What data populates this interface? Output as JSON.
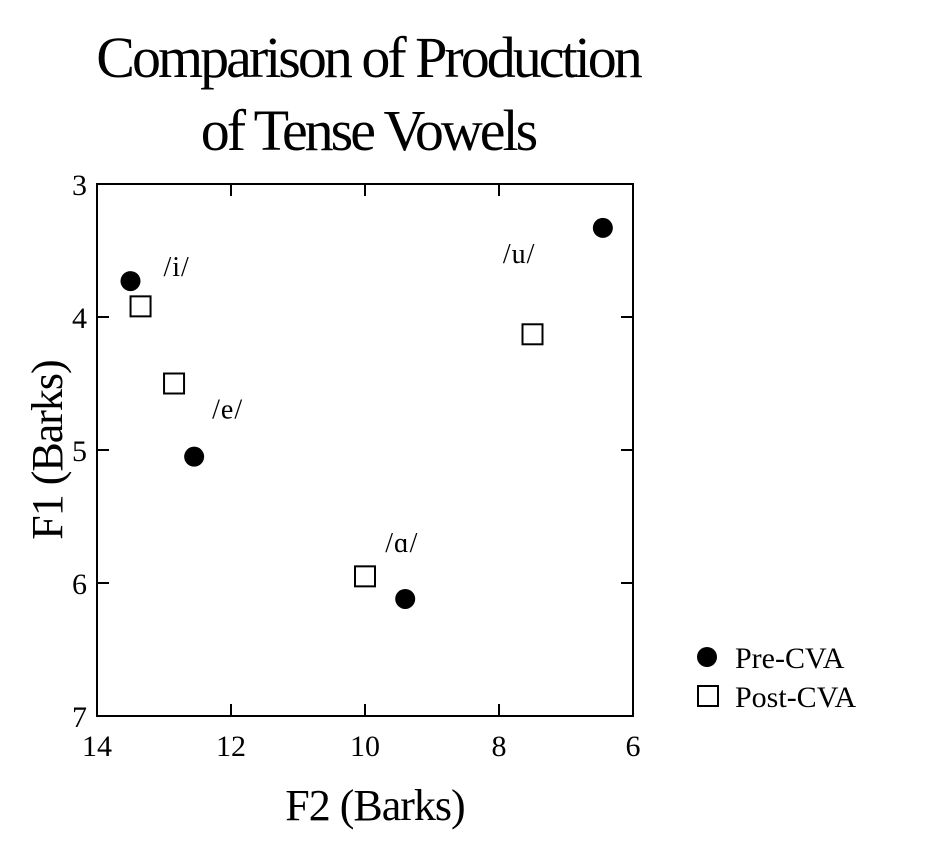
{
  "chart_data": {
    "type": "scatter",
    "title_lines": [
      "Comparison of Production",
      "of Tense Vowels"
    ],
    "xlabel": "F2 (Barks)",
    "ylabel": "F1 (Barks)",
    "xlim": [
      14,
      6
    ],
    "ylim": [
      3,
      7
    ],
    "x_reversed": true,
    "y_reversed": true,
    "xticks": [
      14,
      12,
      10,
      8,
      6
    ],
    "yticks": [
      3,
      4,
      5,
      6,
      7
    ],
    "grid": false,
    "legend_position": "right",
    "series": [
      {
        "name": "Pre-CVA",
        "marker": "filled-circle",
        "points": [
          {
            "vowel": "/i/",
            "x": 13.5,
            "y": 3.73
          },
          {
            "vowel": "/e/",
            "x": 12.55,
            "y": 5.05
          },
          {
            "vowel": "/ɑ/",
            "x": 9.4,
            "y": 6.12
          },
          {
            "vowel": "/u/",
            "x": 6.45,
            "y": 3.33
          }
        ]
      },
      {
        "name": "Post-CVA",
        "marker": "open-square",
        "points": [
          {
            "vowel": "/i/",
            "x": 13.35,
            "y": 3.92
          },
          {
            "vowel": "/e/",
            "x": 12.85,
            "y": 4.5
          },
          {
            "vowel": "/ɑ/",
            "x": 10.0,
            "y": 5.95
          },
          {
            "vowel": "/u/",
            "x": 7.5,
            "y": 4.13
          }
        ]
      }
    ],
    "annotations": [
      "/i/",
      "/e/",
      "/ɑ/",
      "/u/"
    ]
  }
}
